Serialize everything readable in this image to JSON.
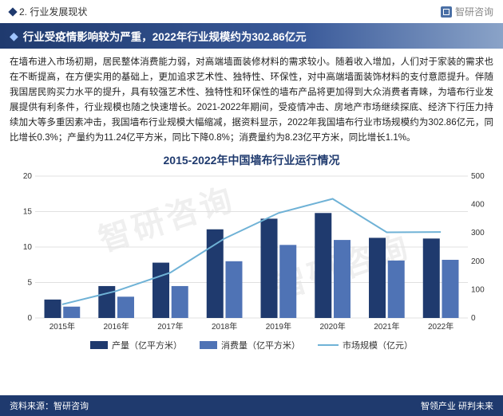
{
  "top": {
    "section": "2. 行业发展现状",
    "brand": "智研咨询"
  },
  "headline": "行业受疫情影响较为严重，2022年行业规模约为302.86亿元",
  "body": "在墙布进入市场初期，居民整体消费能力弱，对高端墙面装修材料的需求较小。随着收入增加，人们对于家装的需求也在不断提高，在方便实用的基础上，更加追求艺术性、独特性、环保性，对中高端墙面装饰材料的支付意愿提升。伴随我国居民购买力水平的提升，具有较强艺术性、独特性和环保性的墙布产品将更加得到大众消费者青睐，为墙布行业发展提供有利条件，行业规模也随之快速增长。2021-2022年期间，受疫情冲击、房地产市场继续探底、经济下行压力持续加大等多重因素冲击，我国墙布行业规模大幅缩减，据资料显示，2022年我国墙布行业市场规模约为302.86亿元，同比增长0.3%；产量约为11.24亿平方米，同比下降0.8%；消费量约为8.23亿平方米，同比增长1.1%。",
  "chart": {
    "title": "2015-2022年中国墙布行业运行情况",
    "categories": [
      "2015年",
      "2016年",
      "2017年",
      "2018年",
      "2019年",
      "2020年",
      "2021年",
      "2022年"
    ],
    "series": {
      "production": {
        "label": "产量（亿平方米）",
        "color": "#1f3a6e",
        "values": [
          2.6,
          4.5,
          7.8,
          12.5,
          14.0,
          14.8,
          11.3,
          11.2
        ]
      },
      "consumption": {
        "label": "消费量（亿平方米）",
        "color": "#4f73b5",
        "values": [
          1.6,
          3.0,
          4.5,
          8.0,
          10.3,
          11.0,
          8.1,
          8.2
        ]
      },
      "market": {
        "label": "市场规模（亿元）",
        "color": "#6fb2d6",
        "values": [
          48,
          95,
          160,
          280,
          370,
          420,
          302,
          303
        ]
      }
    },
    "leftAxis": {
      "min": 0,
      "max": 20,
      "step": 5,
      "grid_color": "#e0e0e0"
    },
    "rightAxis": {
      "min": 0,
      "max": 500,
      "step": 100
    },
    "plot": {
      "bg": "#ffffff",
      "bar_group_width": 0.62,
      "bar_gap": 0.04,
      "axis_fontsize": 10,
      "line_width": 2
    }
  },
  "footer": {
    "left": "资料来源：智研咨询",
    "right": "智领产业 研判未来"
  },
  "watermark": "智研咨询"
}
